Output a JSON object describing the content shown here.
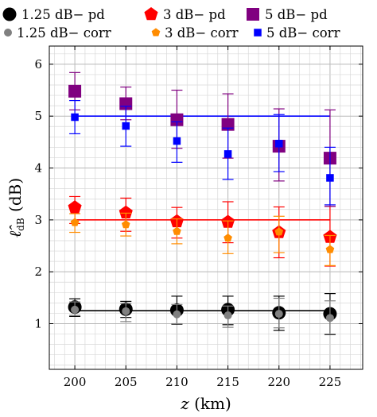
{
  "chart_data": {
    "type": "scatter",
    "title": "",
    "xlabel_var": "z",
    "xlabel_unit": " (km)",
    "ylabel_var": "ℓ̂",
    "ylabel_sub": "dB",
    "ylabel_unit": " (dB)",
    "x": [
      200,
      205,
      210,
      215,
      220,
      225
    ],
    "xlim": [
      197.5,
      228.2
    ],
    "ylim": [
      0.12,
      6.35
    ],
    "xticks": [
      200,
      205,
      210,
      215,
      220,
      225
    ],
    "yticks": [
      1,
      2,
      3,
      4,
      5,
      6
    ],
    "grid": true,
    "legend_position": "top",
    "reference_lines": [
      {
        "value": 1.25,
        "color": "#000000"
      },
      {
        "value": 3,
        "color": "#ff0000"
      },
      {
        "value": 5,
        "color": "#0000ff"
      }
    ],
    "series": [
      {
        "name": "1.25 dB− pd",
        "marker": "circle",
        "size": "large",
        "color": "#000000",
        "y": [
          1.32,
          1.28,
          1.26,
          1.27,
          1.21,
          1.19
        ],
        "err_low": [
          1.14,
          1.12,
          0.99,
          0.98,
          0.87,
          0.79
        ],
        "err_high": [
          1.48,
          1.43,
          1.53,
          1.53,
          1.53,
          1.58
        ]
      },
      {
        "name": "3 dB− pd",
        "marker": "pentagon",
        "size": "large",
        "color": "#ff0000",
        "y": [
          3.24,
          3.14,
          2.97,
          2.96,
          2.76,
          2.67
        ],
        "err_low": [
          2.93,
          2.78,
          2.65,
          2.56,
          2.27,
          2.11
        ],
        "err_high": [
          3.45,
          3.42,
          3.24,
          3.35,
          3.25,
          3.26
        ]
      },
      {
        "name": "5 dB− pd",
        "marker": "square",
        "size": "large",
        "color": "#800080",
        "y": [
          5.48,
          5.24,
          4.93,
          4.84,
          4.42,
          4.19
        ],
        "err_low": [
          5.12,
          4.93,
          4.38,
          4.19,
          3.75,
          3.26
        ],
        "err_high": [
          5.84,
          5.56,
          5.5,
          5.43,
          5.14,
          5.12
        ]
      },
      {
        "name": "1.25 dB− corr",
        "marker": "circle",
        "size": "small",
        "color": "#808080",
        "y": [
          1.27,
          1.24,
          1.18,
          1.16,
          1.19,
          1.11
        ],
        "err_low": [
          1.16,
          1.04,
          1.0,
          0.93,
          0.92,
          0.8
        ],
        "err_high": [
          1.42,
          1.39,
          1.37,
          1.34,
          1.49,
          1.44
        ]
      },
      {
        "name": "3 dB− corr",
        "marker": "pentagon",
        "size": "small",
        "color": "#ff8c00",
        "y": [
          2.95,
          2.91,
          2.78,
          2.65,
          2.77,
          2.43
        ],
        "err_low": [
          2.76,
          2.69,
          2.54,
          2.35,
          2.37,
          2.12
        ],
        "err_high": [
          3.12,
          3.13,
          3.02,
          2.98,
          3.07,
          2.7
        ]
      },
      {
        "name": "5 dB− corr",
        "marker": "square",
        "size": "small",
        "color": "#0000ff",
        "y": [
          4.98,
          4.81,
          4.52,
          4.27,
          4.47,
          3.81
        ],
        "err_low": [
          4.66,
          4.42,
          4.11,
          3.78,
          3.93,
          3.29
        ],
        "err_high": [
          5.3,
          5.19,
          4.89,
          4.77,
          5.03,
          4.4
        ]
      }
    ]
  }
}
